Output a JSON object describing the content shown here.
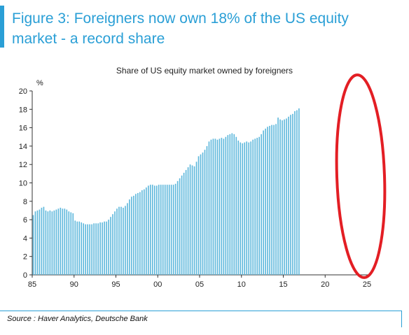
{
  "figure_title": "Figure 3: Foreigners now own 18% of the US equity market - a record share",
  "source": "Source : Haver Analytics, Deutsche Bank",
  "colors": {
    "accent": "#2a9fd6",
    "bars": "#5fb8dc",
    "highlight_ellipse": "#e31e24"
  },
  "chart_data": {
    "type": "bar",
    "title": "Share of US equity market owned by foreigners",
    "ylabel": "%",
    "xlabel": "",
    "ylim": [
      0,
      20
    ],
    "y_ticks": [
      "0",
      "2",
      "4",
      "6",
      "8",
      "10",
      "12",
      "14",
      "16",
      "18",
      "20"
    ],
    "x_tick_labels": [
      "85",
      "90",
      "95",
      "00",
      "05",
      "10",
      "15",
      "20",
      "25"
    ],
    "x_tick_years": [
      1985,
      1990,
      1995,
      2000,
      2005,
      2010,
      2015,
      2020,
      2025
    ],
    "grid": false,
    "frequency": "quarterly",
    "series": [
      {
        "x_start": "1985 Q1",
        "values": [
          6.5,
          6.9,
          7.0,
          7.1,
          7.3,
          7.4,
          7.0,
          6.9,
          7.0,
          6.9,
          7.0,
          7.1,
          7.2,
          7.3,
          7.2,
          7.2,
          7.1,
          6.9,
          6.8,
          6.7,
          5.9,
          5.8,
          5.8,
          5.7,
          5.6,
          5.5,
          5.5,
          5.5,
          5.5,
          5.6,
          5.6,
          5.6,
          5.7,
          5.7,
          5.8,
          5.8,
          6.0,
          6.3,
          6.6,
          6.9,
          7.2,
          7.4,
          7.4,
          7.3,
          7.5,
          7.8,
          8.2,
          8.5,
          8.6,
          8.8,
          8.9,
          9.0,
          9.2,
          9.3,
          9.5,
          9.7,
          9.8,
          9.8,
          9.7,
          9.7,
          9.8,
          9.8,
          9.8,
          9.8,
          9.8,
          9.8,
          9.8,
          9.8,
          9.9,
          10.2,
          10.5,
          10.8,
          11.1,
          11.4,
          11.7,
          12.0,
          11.9,
          11.8,
          12.3,
          12.9,
          13.1,
          13.3,
          13.6,
          14.0,
          14.5,
          14.7,
          14.8,
          14.8,
          14.7,
          14.8,
          14.9,
          14.8,
          15.0,
          15.2,
          15.3,
          15.4,
          15.3,
          15.0,
          14.6,
          14.4,
          14.3,
          14.4,
          14.5,
          14.4,
          14.5,
          14.7,
          14.8,
          14.9,
          15.0,
          15.3,
          15.7,
          15.9,
          16.1,
          16.2,
          16.3,
          16.3,
          16.4,
          17.1,
          16.9,
          16.8,
          16.9,
          17.0,
          17.2,
          17.4,
          17.5,
          17.8,
          17.9,
          18.1
        ]
      }
    ],
    "annotations": [
      "red ellipse highlighting the most recent values"
    ]
  }
}
